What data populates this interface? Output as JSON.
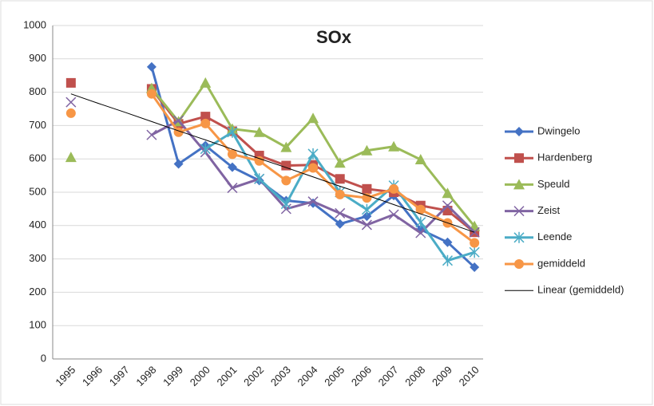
{
  "chart_data": {
    "type": "line",
    "title": "SOx",
    "categories": [
      "1995",
      "1996",
      "1997",
      "1998",
      "1999",
      "2000",
      "2001",
      "2002",
      "2003",
      "2004",
      "2005",
      "2006",
      "2007",
      "2008",
      "2009",
      "2010"
    ],
    "ylim": [
      0,
      1000
    ],
    "yticks": [
      0,
      100,
      200,
      300,
      400,
      500,
      600,
      700,
      800,
      900,
      1000
    ],
    "grid": true,
    "legend": "right",
    "series": [
      {
        "name": "Dwingelo",
        "color": "#4472c4",
        "marker": "diamond",
        "values": [
          null,
          null,
          null,
          876,
          585,
          640,
          575,
          535,
          475,
          467,
          405,
          428,
          490,
          388,
          350,
          275
        ]
      },
      {
        "name": "Hardenberg",
        "color": "#c0504d",
        "marker": "square",
        "values": [
          828,
          null,
          null,
          810,
          705,
          727,
          683,
          610,
          580,
          582,
          540,
          510,
          500,
          460,
          445,
          380
        ]
      },
      {
        "name": "Speuld",
        "color": "#9bbb59",
        "marker": "triangle",
        "values": [
          605,
          null,
          null,
          812,
          712,
          828,
          690,
          680,
          635,
          722,
          588,
          625,
          637,
          598,
          497,
          398
        ]
      },
      {
        "name": "Zeist",
        "color": "#8064a2",
        "marker": "x",
        "values": [
          770,
          null,
          null,
          672,
          715,
          620,
          513,
          540,
          450,
          472,
          437,
          402,
          433,
          378,
          460,
          380
        ]
      },
      {
        "name": "Leende",
        "color": "#4bacc6",
        "marker": "star",
        "values": [
          null,
          null,
          null,
          null,
          null,
          630,
          680,
          540,
          465,
          615,
          500,
          448,
          520,
          410,
          295,
          320
        ]
      },
      {
        "name": "gemiddeld",
        "color": "#f79646",
        "marker": "circle",
        "values": [
          737,
          null,
          null,
          795,
          680,
          706,
          614,
          594,
          535,
          573,
          493,
          483,
          510,
          448,
          408,
          348
        ]
      },
      {
        "name": "Linear (gemiddeld)",
        "color": "#000000",
        "marker": "none",
        "values": [
          795,
          767,
          740,
          712,
          684,
          657,
          629,
          601,
          574,
          546,
          518,
          491,
          463,
          435,
          408,
          380
        ]
      }
    ]
  }
}
